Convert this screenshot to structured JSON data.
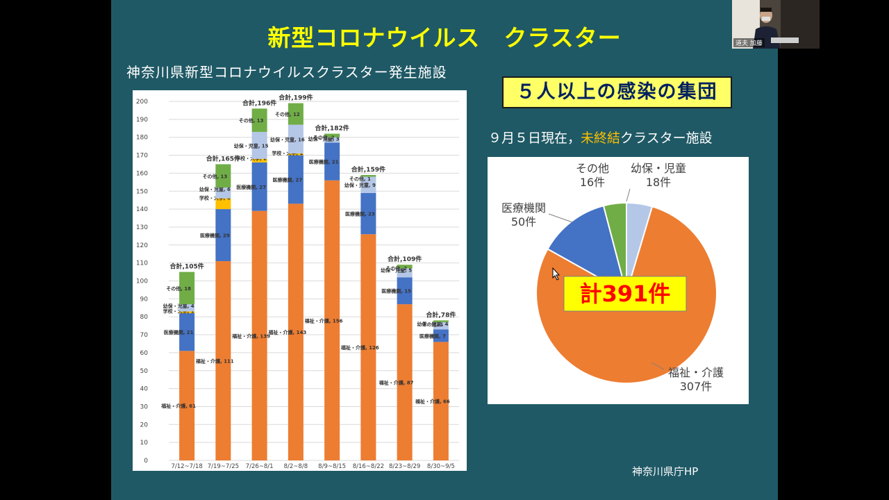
{
  "slide": {
    "title": "新型コロナウイルス　クラスター",
    "subtitle": "神奈川県新型コロナウイルスクラスター発生施設",
    "banner": "５人以上の感染の集団",
    "status_prefix": "９月５日現在，",
    "status_highlight": "未終結",
    "status_suffix": "クラスター施設",
    "source": "神奈川県庁HP"
  },
  "webcam": {
    "name": "道夫 加藤"
  },
  "colors": {
    "welfare": "#ed7d31",
    "medical": "#4472c4",
    "school": "#ffc000",
    "childcare": "#b4c7e7",
    "other": "#70ad47",
    "background": "#1f5965",
    "title": "#ffff00"
  },
  "chart_data": [
    {
      "type": "bar",
      "stacked": true,
      "categories": [
        "7/12~7/18",
        "7/19~7/25",
        "7/26~8/1",
        "8/2~8/8",
        "8/9~8/15",
        "8/16~8/22",
        "8/23~8/29",
        "8/30~9/5"
      ],
      "ylim": [
        0,
        200
      ],
      "yticks": [
        0,
        10,
        20,
        30,
        40,
        50,
        60,
        70,
        80,
        90,
        100,
        110,
        120,
        130,
        140,
        150,
        160,
        170,
        180,
        190,
        200
      ],
      "grid": true,
      "series": [
        {
          "name": "福祉・介護",
          "color": "#ed7d31",
          "values": [
            61,
            111,
            139,
            143,
            156,
            126,
            87,
            66
          ]
        },
        {
          "name": "医療機関",
          "color": "#4472c4",
          "values": [
            21,
            29,
            27,
            27,
            21,
            23,
            15,
            7
          ]
        },
        {
          "name": "学校・大学",
          "color": "#ffc000",
          "values": [
            1,
            6,
            2,
            1,
            null,
            null,
            null,
            null
          ]
        },
        {
          "name": "幼保・児童",
          "color": "#b4c7e7",
          "values": [
            4,
            6,
            15,
            16,
            3,
            9,
            5,
            4
          ]
        },
        {
          "name": "その他",
          "color": "#70ad47",
          "values": [
            18,
            13,
            13,
            12,
            2,
            1,
            2,
            1
          ]
        }
      ],
      "totals": [
        "合計,105件",
        "合計,165件",
        "合計,196件",
        "合計,199件",
        "合計,182件",
        "合計,159件",
        "合計,109件",
        "合計,78件"
      ]
    },
    {
      "type": "pie",
      "slices": [
        {
          "name": "幼保・児童",
          "value": 18,
          "label": "18件",
          "color": "#b4c7e7"
        },
        {
          "name": "福祉・介護",
          "value": 307,
          "label": "307件",
          "color": "#ed7d31"
        },
        {
          "name": "医療機関",
          "value": 50,
          "label": "50件",
          "color": "#4472c4"
        },
        {
          "name": "その他",
          "value": 16,
          "label": "16件",
          "color": "#70ad47"
        }
      ],
      "total_label": "計391件"
    }
  ]
}
